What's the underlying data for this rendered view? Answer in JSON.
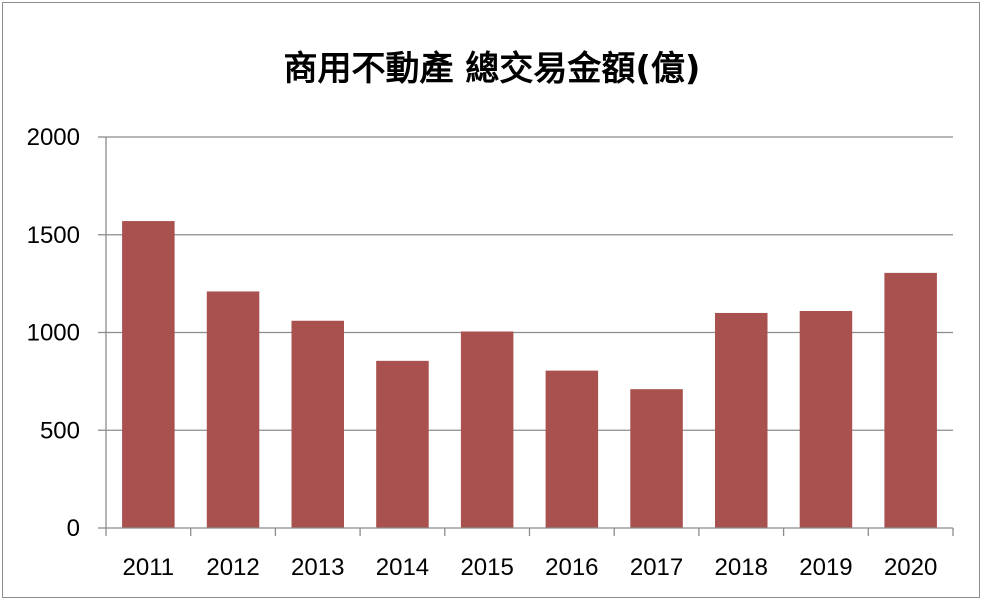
{
  "chart_data": {
    "type": "bar",
    "title": "商用不動產 總交易金額(億)",
    "xlabel": "",
    "ylabel": "",
    "categories": [
      "2011",
      "2012",
      "2013",
      "2014",
      "2015",
      "2016",
      "2017",
      "2018",
      "2019",
      "2020"
    ],
    "values": [
      1570,
      1210,
      1060,
      855,
      1005,
      805,
      710,
      1100,
      1110,
      1305
    ],
    "ylim": [
      0,
      2000
    ],
    "yticks": [
      0,
      500,
      1000,
      1500,
      2000
    ],
    "grid": true,
    "legend": "none",
    "bar_color": "#a9514f"
  }
}
